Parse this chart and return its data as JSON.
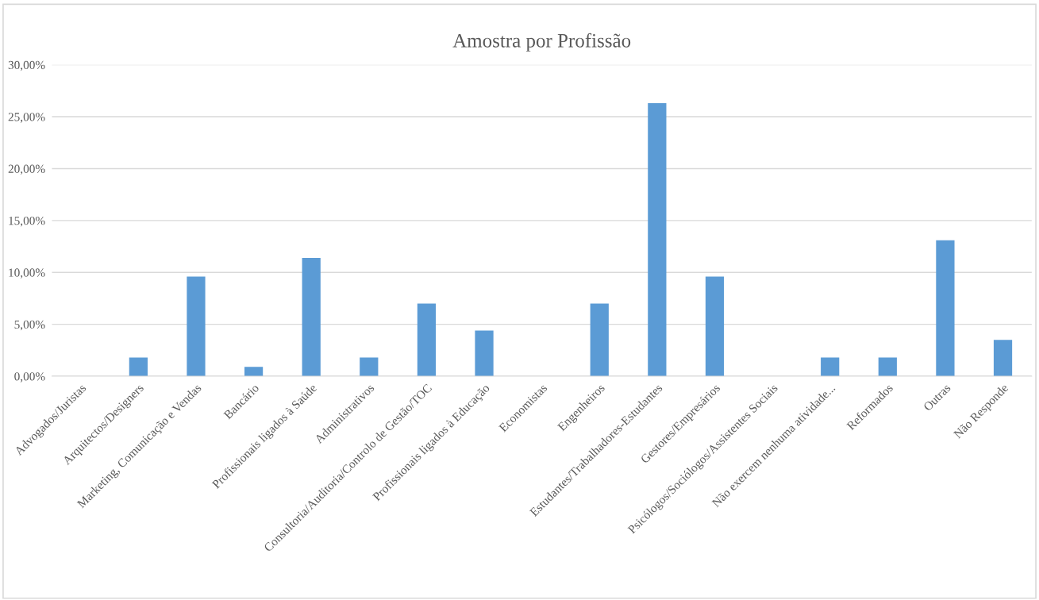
{
  "chart_data": {
    "type": "bar",
    "title": "Amostra por Profissão",
    "categories": [
      "Advogados/Juristas",
      "Arquitectos/Designers",
      "Marketing, Comunicação e Vendas",
      "Bancário",
      "Profissionais ligados à Saúde",
      "Administrativos",
      "Consultoria/Auditoria/Controlo de Gestão/TOC",
      "Profissionais ligados à Educação",
      "Economistas",
      "Engenheiros",
      "Estudantes/Trabalhadores-Estudantes",
      "Gestores/Empresários",
      "Psicólogos/Sociólogos/Assistentes Sociais",
      "Não exercem nenhuma atividade...",
      "Reformados",
      "Outras",
      "Não Responde"
    ],
    "values": [
      0,
      1.8,
      9.6,
      0.9,
      11.4,
      1.8,
      7.0,
      4.4,
      0,
      7.0,
      26.3,
      9.6,
      0,
      1.8,
      1.8,
      13.1,
      3.5
    ],
    "color": "#5b9bd5",
    "ylim": [
      0,
      30
    ],
    "yticks": [
      {
        "value": 0,
        "label": "0,00%"
      },
      {
        "value": 5,
        "label": "5,00%"
      },
      {
        "value": 10,
        "label": "10,00%"
      },
      {
        "value": 15,
        "label": "15,00%"
      },
      {
        "value": 20,
        "label": "20,00%"
      },
      {
        "value": 25,
        "label": "25,00%"
      },
      {
        "value": 30,
        "label": "30,00%"
      }
    ],
    "grid": "y"
  }
}
